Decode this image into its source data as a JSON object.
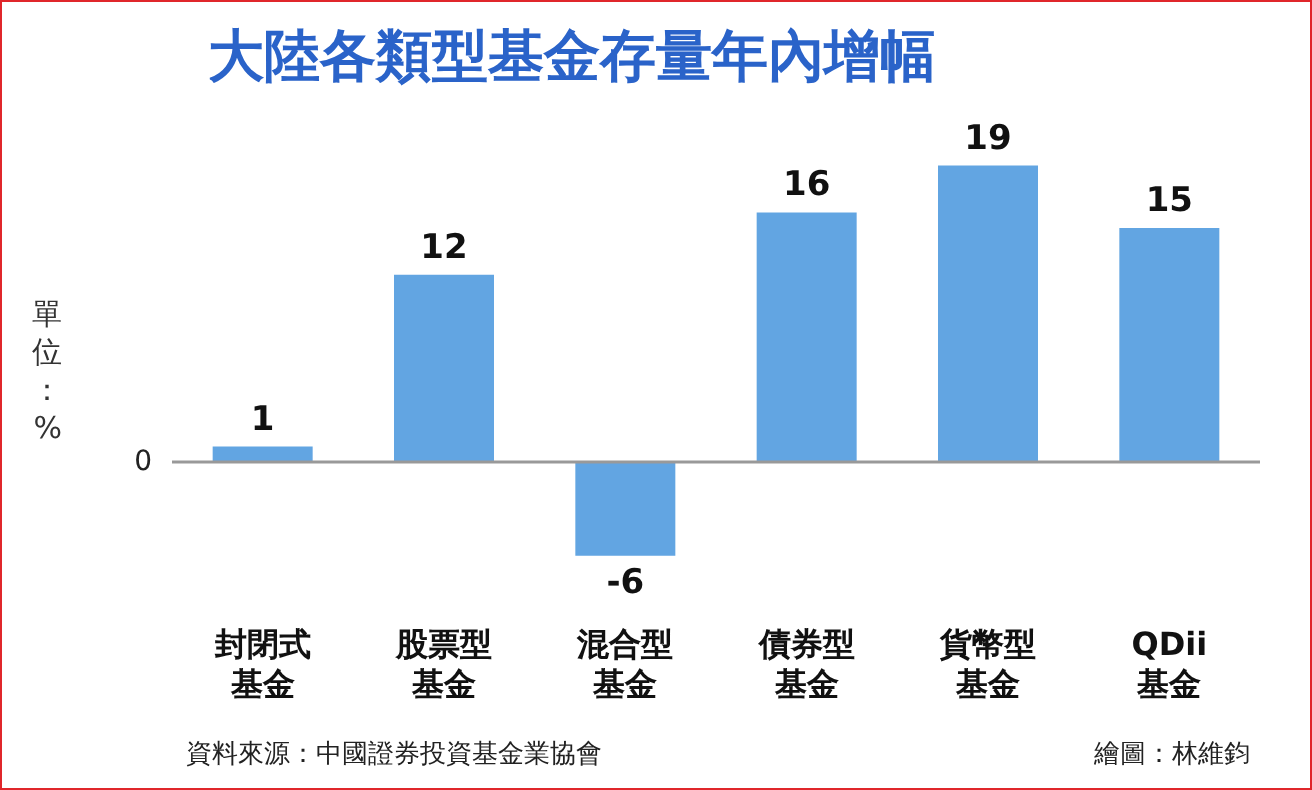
{
  "chart_data": {
    "type": "bar",
    "title": "大陸各類型基金存量年內增幅",
    "ylabel": "單位：%",
    "categories": [
      "封閉式基金",
      "股票型基金",
      "混合型基金",
      "債券型基金",
      "貨幣型基金",
      "QDii基金"
    ],
    "values": [
      1,
      12,
      -6,
      16,
      19,
      15
    ],
    "color": "#62a5e2",
    "data_labels": true,
    "grid": false,
    "ref_lines": [
      {
        "axis": "y",
        "value": 0,
        "label": "0",
        "color": "#999999"
      }
    ],
    "annotations": [
      "資料來源：中國證券投資基金業協會",
      "繪圖：林維鈞"
    ]
  }
}
